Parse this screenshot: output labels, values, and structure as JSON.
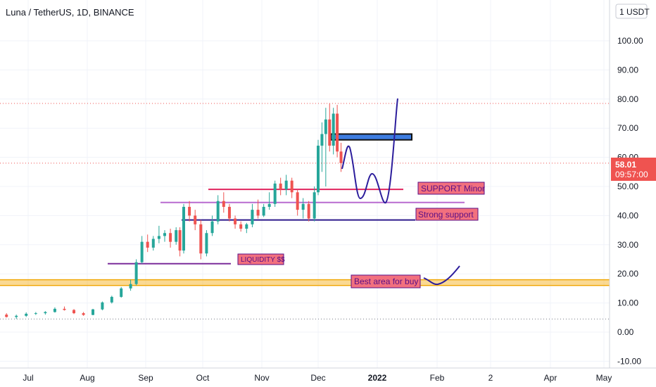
{
  "header": {
    "title": "Luna / TetherUS, 1D, BINANCE"
  },
  "scale_button": "1 USDT",
  "price_tag": {
    "price": "58.01",
    "countdown": "09:57:00",
    "value": 58.01
  },
  "colors": {
    "up": "#26a69a",
    "down": "#ef5350",
    "hline_red": "#e0245e",
    "hline_purple": "#2e1a8c",
    "hline_magenta": "#b86ad0",
    "orange_band": "#f6b93b",
    "drawing": "#2c1d9c",
    "tag_bg": "#f2707e"
  },
  "chart_data": {
    "type": "candlestick",
    "symbol": "Luna / TetherUS",
    "interval": "1D",
    "exchange": "BINANCE",
    "y_ticks": [
      "100.00",
      "90.00",
      "80.00",
      "70.00",
      "60.00",
      "50.00",
      "40.00",
      "30.00",
      "20.00",
      "10.00",
      "0.00",
      "-10.00"
    ],
    "ylim": [
      -10,
      110
    ],
    "x_ticks": [
      "Jul",
      "Aug",
      "Sep",
      "Oct",
      "Nov",
      "Dec",
      "2022",
      "Feb",
      "2",
      "Apr",
      "May"
    ],
    "dotted_levels": [
      78.5,
      58.0,
      4.5
    ],
    "candles": [
      {
        "x": "Jun 20",
        "o": 6.0,
        "h": 6.5,
        "l": 5.0,
        "c": 5.2
      },
      {
        "x": "Jun 25",
        "o": 5.2,
        "h": 6.0,
        "l": 4.5,
        "c": 5.6
      },
      {
        "x": "Jun 30",
        "o": 5.6,
        "h": 6.8,
        "l": 5.2,
        "c": 6.3
      },
      {
        "x": "Jul 05",
        "o": 6.3,
        "h": 6.9,
        "l": 5.9,
        "c": 6.5
      },
      {
        "x": "Jul 10",
        "o": 6.5,
        "h": 7.2,
        "l": 6.0,
        "c": 6.9
      },
      {
        "x": "Jul 15",
        "o": 6.9,
        "h": 8.5,
        "l": 6.7,
        "c": 8.0
      },
      {
        "x": "Jul 20",
        "o": 8.0,
        "h": 8.8,
        "l": 7.4,
        "c": 7.6
      },
      {
        "x": "Jul 25",
        "o": 7.6,
        "h": 7.9,
        "l": 6.2,
        "c": 6.5
      },
      {
        "x": "Jul 30",
        "o": 6.5,
        "h": 6.9,
        "l": 5.6,
        "c": 5.9
      },
      {
        "x": "Aug 04",
        "o": 5.9,
        "h": 8.0,
        "l": 5.8,
        "c": 7.8
      },
      {
        "x": "Aug 09",
        "o": 7.8,
        "h": 10.5,
        "l": 7.5,
        "c": 10.2
      },
      {
        "x": "Aug 14",
        "o": 10.2,
        "h": 12.5,
        "l": 9.8,
        "c": 12.1
      },
      {
        "x": "Aug 19",
        "o": 12.1,
        "h": 15.5,
        "l": 11.8,
        "c": 15.0
      },
      {
        "x": "Aug 24",
        "o": 15.0,
        "h": 18.0,
        "l": 14.2,
        "c": 16.5
      },
      {
        "x": "Aug 27",
        "o": 16.5,
        "h": 25.0,
        "l": 16.0,
        "c": 24.0
      },
      {
        "x": "Aug 30",
        "o": 24.0,
        "h": 33.0,
        "l": 23.5,
        "c": 31.0
      },
      {
        "x": "Sep 02",
        "o": 31.0,
        "h": 33.5,
        "l": 27.5,
        "c": 29.0
      },
      {
        "x": "Sep 05",
        "o": 29.0,
        "h": 33.0,
        "l": 28.0,
        "c": 32.0
      },
      {
        "x": "Sep 08",
        "o": 32.0,
        "h": 36.5,
        "l": 30.5,
        "c": 33.0
      },
      {
        "x": "Sep 11",
        "o": 33.0,
        "h": 35.0,
        "l": 31.0,
        "c": 34.0
      },
      {
        "x": "Sep 14",
        "o": 34.0,
        "h": 35.5,
        "l": 29.0,
        "c": 31.0
      },
      {
        "x": "Sep 17",
        "o": 31.0,
        "h": 36.0,
        "l": 30.0,
        "c": 35.0
      },
      {
        "x": "Sep 19",
        "o": 35.0,
        "h": 36.0,
        "l": 26.0,
        "c": 28.0
      },
      {
        "x": "Sep 21",
        "o": 28.0,
        "h": 44.0,
        "l": 27.0,
        "c": 43.0
      },
      {
        "x": "Sep 24",
        "o": 43.0,
        "h": 45.0,
        "l": 38.0,
        "c": 40.0
      },
      {
        "x": "Sep 27",
        "o": 40.0,
        "h": 42.0,
        "l": 35.0,
        "c": 37.0
      },
      {
        "x": "Sep 30",
        "o": 37.0,
        "h": 38.5,
        "l": 25.0,
        "c": 27.0
      },
      {
        "x": "Oct 03",
        "o": 27.0,
        "h": 35.0,
        "l": 26.0,
        "c": 34.0
      },
      {
        "x": "Oct 06",
        "o": 34.0,
        "h": 40.0,
        "l": 33.0,
        "c": 38.0
      },
      {
        "x": "Oct 09",
        "o": 38.0,
        "h": 47.0,
        "l": 37.0,
        "c": 45.0
      },
      {
        "x": "Oct 12",
        "o": 45.0,
        "h": 48.0,
        "l": 41.0,
        "c": 43.0
      },
      {
        "x": "Oct 15",
        "o": 43.0,
        "h": 44.0,
        "l": 38.0,
        "c": 39.0
      },
      {
        "x": "Oct 18",
        "o": 39.0,
        "h": 40.0,
        "l": 35.5,
        "c": 37.0
      },
      {
        "x": "Oct 21",
        "o": 37.0,
        "h": 38.0,
        "l": 34.5,
        "c": 35.5
      },
      {
        "x": "Oct 24",
        "o": 35.5,
        "h": 37.5,
        "l": 34.0,
        "c": 37.0
      },
      {
        "x": "Oct 27",
        "o": 37.0,
        "h": 44.0,
        "l": 36.0,
        "c": 42.0
      },
      {
        "x": "Oct 30",
        "o": 42.0,
        "h": 45.5,
        "l": 39.0,
        "c": 40.0
      },
      {
        "x": "Nov 02",
        "o": 40.0,
        "h": 44.0,
        "l": 39.5,
        "c": 43.0
      },
      {
        "x": "Nov 05",
        "o": 43.0,
        "h": 48.0,
        "l": 42.0,
        "c": 44.0
      },
      {
        "x": "Nov 08",
        "o": 44.0,
        "h": 52.0,
        "l": 43.0,
        "c": 51.0
      },
      {
        "x": "Nov 11",
        "o": 51.0,
        "h": 53.0,
        "l": 47.0,
        "c": 49.0
      },
      {
        "x": "Nov 14",
        "o": 49.0,
        "h": 54.0,
        "l": 47.0,
        "c": 52.0
      },
      {
        "x": "Nov 17",
        "o": 52.0,
        "h": 53.0,
        "l": 46.0,
        "c": 48.0
      },
      {
        "x": "Nov 20",
        "o": 48.0,
        "h": 49.0,
        "l": 40.0,
        "c": 42.0
      },
      {
        "x": "Nov 23",
        "o": 42.0,
        "h": 46.0,
        "l": 39.0,
        "c": 44.0
      },
      {
        "x": "Nov 26",
        "o": 44.0,
        "h": 45.0,
        "l": 38.0,
        "c": 39.0
      },
      {
        "x": "Nov 29",
        "o": 39.0,
        "h": 50.0,
        "l": 38.0,
        "c": 48.0
      },
      {
        "x": "Dec 01",
        "o": 48.0,
        "h": 66.0,
        "l": 47.0,
        "c": 64.0
      },
      {
        "x": "Dec 03",
        "o": 64.0,
        "h": 72.0,
        "l": 55.0,
        "c": 68.0
      },
      {
        "x": "Dec 05",
        "o": 68.0,
        "h": 77.0,
        "l": 50.0,
        "c": 73.0
      },
      {
        "x": "Dec 07",
        "o": 73.0,
        "h": 78.5,
        "l": 62.0,
        "c": 64.0
      },
      {
        "x": "Dec 09",
        "o": 64.0,
        "h": 77.0,
        "l": 61.0,
        "c": 75.0
      },
      {
        "x": "Dec 11",
        "o": 75.0,
        "h": 78.0,
        "l": 60.0,
        "c": 62.0
      },
      {
        "x": "Dec 13",
        "o": 62.0,
        "h": 65.0,
        "l": 55.0,
        "c": 58.01
      }
    ]
  },
  "annotations": {
    "support_minor": {
      "label": "SUPPORT Minor",
      "level": 49
    },
    "strong_support": {
      "label": "Strong support",
      "level": 38.5
    },
    "magenta_line": {
      "level": 44.5
    },
    "liquidity": {
      "label": "LIQUIDITY $$",
      "level": 23.5
    },
    "best_area": {
      "label": "Best area for buy",
      "level": 17.0
    },
    "blue_box": {
      "from": 66,
      "to": 68
    }
  }
}
